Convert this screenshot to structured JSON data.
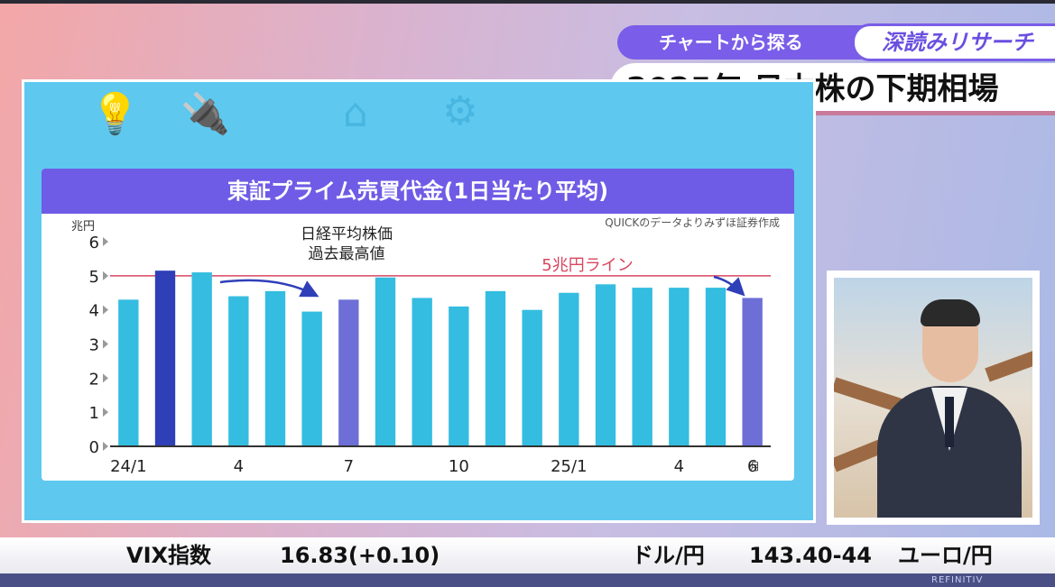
{
  "header": {
    "tag": "チャートから探る",
    "brand": "深読みリサーチ",
    "title": "2025年 日本株の下期相場"
  },
  "chart_data": {
    "type": "bar",
    "title": "東証プライム売買代金(1日当たり平均)",
    "source": "QUICKのデータよりみずほ証券作成",
    "ylabel": "兆円",
    "xlabel_unit": "月",
    "ylim": [
      0,
      6
    ],
    "yticks": [
      "0",
      "1",
      "2",
      "3",
      "4",
      "5",
      "6"
    ],
    "categories": [
      "24/1",
      "24/2",
      "24/3",
      "24/4",
      "24/5",
      "24/6",
      "24/7",
      "24/8",
      "24/9",
      "24/10",
      "24/11",
      "24/12",
      "25/1",
      "25/2",
      "25/3",
      "25/4",
      "25/5",
      "25/6"
    ],
    "xtick_labels": [
      "24/1",
      "",
      "",
      "4",
      "",
      "",
      "7",
      "",
      "",
      "10",
      "",
      "",
      "25/1",
      "",
      "",
      "4",
      "",
      "6"
    ],
    "values": [
      4.3,
      5.15,
      5.1,
      4.4,
      4.55,
      3.95,
      4.3,
      4.95,
      4.35,
      4.1,
      4.55,
      4.0,
      4.5,
      4.75,
      4.65,
      4.65,
      4.65,
      4.35
    ],
    "highlight_dark": [
      1
    ],
    "highlight_light": [
      6,
      17
    ],
    "reference_line": {
      "value": 5,
      "label": "5兆円ライン"
    },
    "annotation": {
      "line1": "日経平均株価",
      "line2": "過去最高値"
    },
    "colors": {
      "bar": "#34bde0",
      "dark": "#2f3fb8",
      "light": "#6d6fd6",
      "refline": "#d8465f",
      "title_bg": "#6e5ce6"
    }
  },
  "ticker": {
    "items": [
      {
        "name": "VIX指数",
        "value": "16.83(+0.10)"
      },
      {
        "name": "ドル/円",
        "value": "143.40-44"
      },
      {
        "name": "ユーロ/円",
        "value": ""
      }
    ],
    "provider": "REFINITIV"
  }
}
